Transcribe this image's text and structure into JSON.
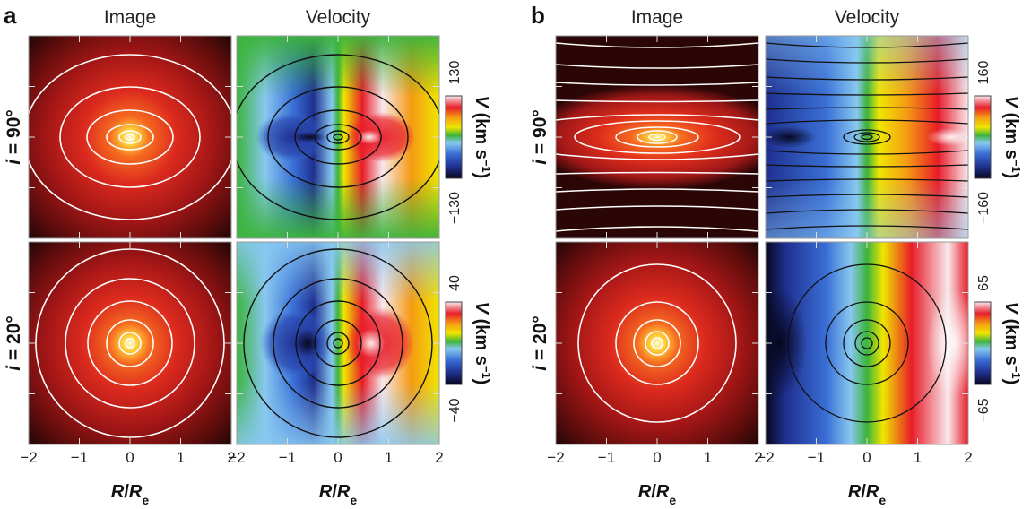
{
  "panels": [
    {
      "letter": "a",
      "col_titles": [
        "Image",
        "Velocity"
      ],
      "rows": [
        {
          "label_i": "i",
          "label_eq": " = ",
          "label_val": "90",
          "deg": "°",
          "cbar_max": "130",
          "cbar_min": "−130",
          "vmax_kms": 130
        },
        {
          "label_i": "i",
          "label_eq": " = ",
          "label_val": "20",
          "deg": "°",
          "cbar_max": "40",
          "cbar_min": "−40",
          "vmax_kms": 40
        }
      ]
    },
    {
      "letter": "b",
      "col_titles": [
        "Image",
        "Velocity"
      ],
      "rows": [
        {
          "label_i": "i",
          "label_eq": " = ",
          "label_val": "90",
          "deg": "°",
          "cbar_max": "160",
          "cbar_min": "−160",
          "vmax_kms": 160
        },
        {
          "label_i": "i",
          "label_eq": " = ",
          "label_val": "20",
          "deg": "°",
          "cbar_max": "65",
          "cbar_min": "−65",
          "vmax_kms": 65
        }
      ]
    }
  ],
  "colorbar_label": {
    "v": "V",
    "unit_open": " (km s",
    "exp": "−1",
    "close": ")"
  },
  "x_axis": {
    "ticks": [
      "−2",
      "−1",
      "0",
      "1",
      "2"
    ],
    "label_r": "R",
    "slash": "/",
    "label_re": "R",
    "sub": "e",
    "range": [
      -2,
      2
    ]
  },
  "colors": {
    "image_colormap": [
      "#1a0505",
      "#5a0c0c",
      "#a21616",
      "#dc2a1e",
      "#f56a20",
      "#ffd23c",
      "#fffde0"
    ],
    "velocity_colormap": [
      "#06061c",
      "#1f2f8f",
      "#3a6fd6",
      "#88c8f0",
      "#3cb43c",
      "#f0e600",
      "#f59a14",
      "#e81c28",
      "#f8e8ec"
    ]
  }
}
